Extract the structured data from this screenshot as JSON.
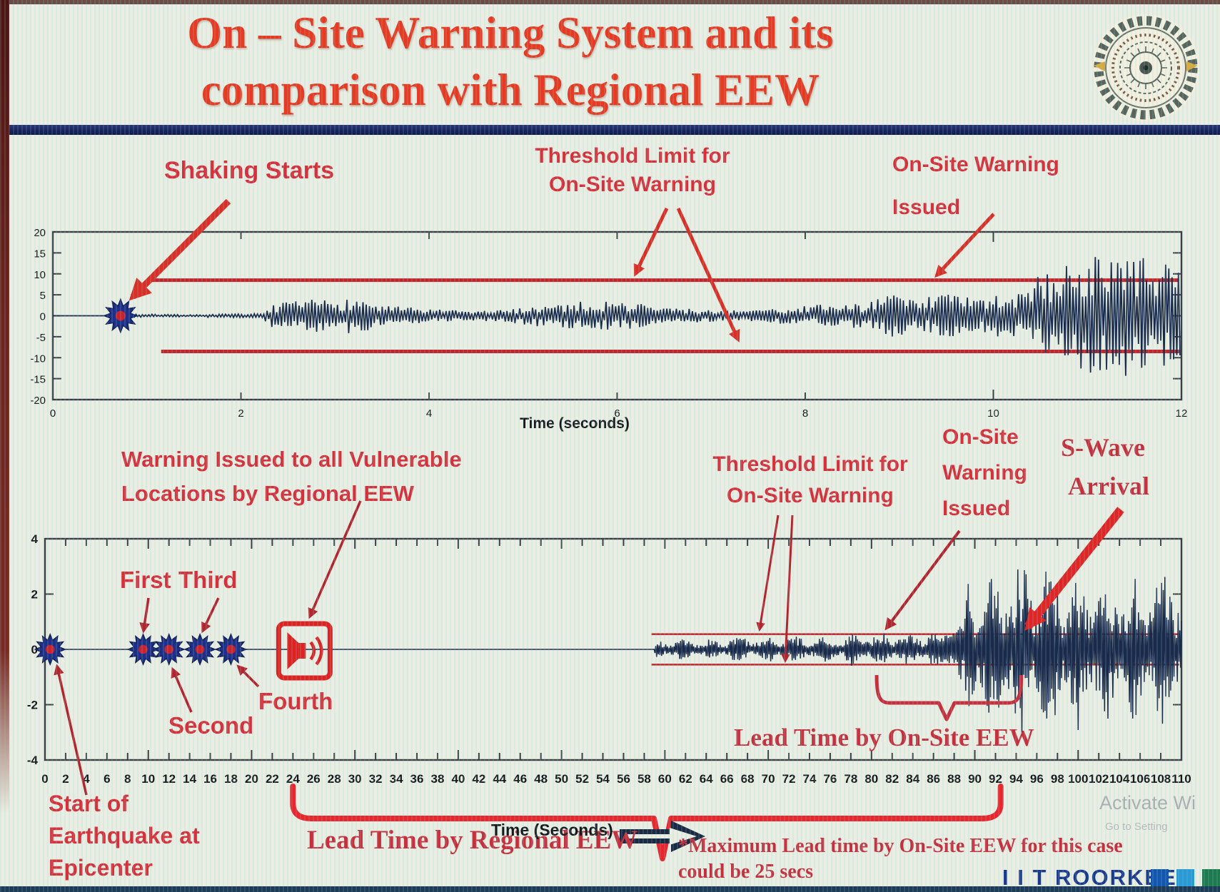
{
  "title": {
    "line1": "On – Site Warning System and its",
    "line2": "comparison with Regional EEW"
  },
  "colors": {
    "title_red": "#e63a22",
    "annotation_red": "#d6303a",
    "serif_red": "#c5303c",
    "threshold_red": "#c0262c",
    "bright_red": "#e8262c",
    "wave_navy": "#1b2a4a",
    "star_navy": "#1e2f8a",
    "footer_navy": "#1b3a8c",
    "divider_navy": "#18245e"
  },
  "annotations": {
    "top": {
      "shaking_starts": "Shaking Starts",
      "threshold_line1": "Threshold Limit for",
      "threshold_line2": "On-Site Warning",
      "issued_line1": "On-Site Warning",
      "issued_line2": "Issued",
      "xlabel": "Time (seconds)"
    },
    "bottom": {
      "regional_line1": "Warning Issued to all Vulnerable",
      "regional_line2": "Locations by Regional EEW",
      "first": "First",
      "third": "Third",
      "second": "Second",
      "fourth": "Fourth",
      "threshold_line1": "Threshold Limit for",
      "threshold_line2": "On-Site Warning",
      "issued_line1": "On-Site",
      "issued_line2": "Warning",
      "issued_line3": "Issued",
      "swave_line1": "S-Wave",
      "swave_line2": "Arrival",
      "lead_onsite": "Lead Time by On-Site EEW",
      "lead_regional": "Lead Time by Regional EEW",
      "start_line1": "Start of",
      "start_line2": "Earthquake at",
      "start_line3": "Epicenter",
      "note_line1": "*Maximum Lead time by On-Site EEW for this case",
      "note_line2": "could be 25 secs",
      "xlabel": "Time (Seconds)"
    }
  },
  "footer": {
    "brand": "I I T ROORKEE"
  },
  "watermark": {
    "line1": "Activate Wi",
    "line2": "Go to Setting"
  },
  "chart_data": [
    {
      "id": "top-seismogram",
      "type": "line",
      "title": "",
      "xlabel": "Time (seconds)",
      "ylabel": "",
      "xlim": [
        0,
        12
      ],
      "xticks": [
        0,
        2,
        4,
        6,
        8,
        10,
        12
      ],
      "ylim": [
        -20,
        20
      ],
      "yticks": [
        20,
        15,
        10,
        5,
        0,
        -5,
        -10,
        -15,
        -20
      ],
      "grid": false,
      "threshold_level": 8.5,
      "threshold_start_t": 1.0,
      "events": {
        "shaking_starts_t": 0.72,
        "onsite_warning_issued_t": 9.35
      },
      "envelope_segments_t0_t1_amp": [
        [
          0,
          0.72,
          0
        ],
        [
          0.72,
          1.6,
          0.5
        ],
        [
          1.6,
          2.25,
          0.9
        ],
        [
          2.25,
          3.4,
          4.2
        ],
        [
          3.4,
          4.9,
          2.8
        ],
        [
          4.9,
          6.3,
          3.5
        ],
        [
          6.3,
          8.7,
          3.0
        ],
        [
          8.7,
          9.3,
          5.5
        ],
        [
          9.3,
          10.0,
          9.5
        ],
        [
          10.0,
          10.4,
          11
        ],
        [
          10.4,
          12,
          15
        ]
      ]
    },
    {
      "id": "bottom-seismogram",
      "type": "line",
      "title": "",
      "xlabel": "Time (Seconds)",
      "ylabel": "",
      "xlim": [
        0,
        110
      ],
      "xtick_step": 2,
      "ylim": [
        -4,
        4
      ],
      "yticks": [
        4,
        2,
        0,
        -2,
        -4
      ],
      "grid": false,
      "threshold_level": 0.55,
      "threshold_start_t": 58.7,
      "events": {
        "epicenter_start_t": 0.5,
        "station_trigger_times": [
          9.5,
          12,
          15,
          18
        ],
        "regional_warning_issued_t": 24,
        "signal_onset_t": 59,
        "onsite_warning_issued_t": 81.5,
        "s_wave_arrival_t": 93,
        "lead_time_onsite_bracket_t": [
          80.5,
          94.5
        ],
        "lead_time_regional_bracket_t": [
          24,
          92.5
        ],
        "max_lead_time_onsite_note": "25 secs"
      },
      "envelope_segments_t0_t1_amp": [
        [
          0,
          59,
          0
        ],
        [
          59,
          66,
          0.38
        ],
        [
          66,
          78,
          0.5
        ],
        [
          78,
          87,
          0.65
        ],
        [
          87,
          89,
          1.3
        ],
        [
          89,
          93,
          2.7
        ],
        [
          93,
          100,
          3.2
        ],
        [
          100,
          106,
          2.7
        ],
        [
          106,
          110,
          2.9
        ]
      ]
    }
  ]
}
